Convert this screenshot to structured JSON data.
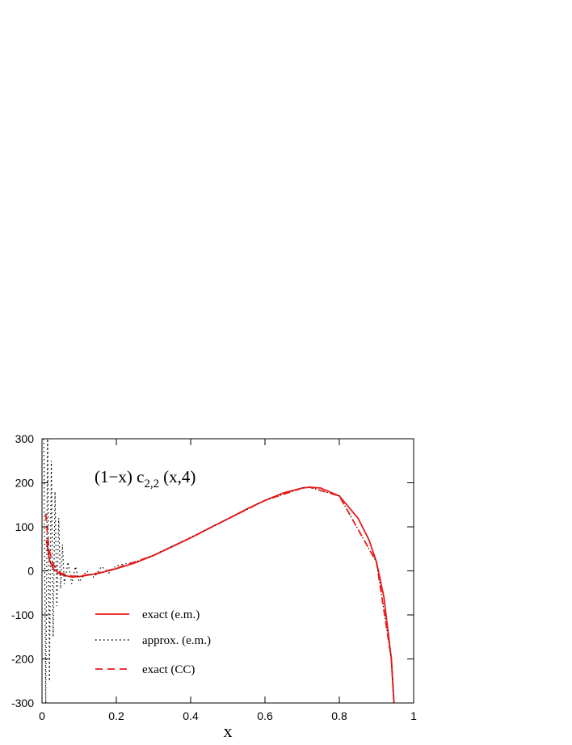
{
  "chart_data": {
    "type": "line",
    "annotation": {
      "text": "(1−x) c",
      "subscript": "2,2",
      "suffix": "(x,4)"
    },
    "x_label": "x",
    "xlim": [
      0,
      1
    ],
    "xticks": [
      0,
      0.2,
      0.4,
      0.6,
      0.8,
      1
    ],
    "ylim": [
      -300,
      300
    ],
    "yticks": [
      -300,
      -200,
      -100,
      0,
      100,
      200,
      300
    ],
    "series": [
      {
        "name": "exact  (e.m.)",
        "color": "#e8191a",
        "style": "solid",
        "x": [
          0.012,
          0.02,
          0.03,
          0.05,
          0.08,
          0.1,
          0.15,
          0.2,
          0.25,
          0.3,
          0.35,
          0.4,
          0.45,
          0.5,
          0.55,
          0.6,
          0.65,
          0.7,
          0.72,
          0.75,
          0.8,
          0.85,
          0.88,
          0.9,
          0.92,
          0.94,
          0.947
        ],
        "values": [
          70,
          25,
          5,
          -8,
          -14,
          -13,
          -6,
          5,
          18,
          35,
          55,
          75,
          97,
          118,
          140,
          160,
          177,
          188,
          190,
          188,
          170,
          120,
          70,
          20,
          -60,
          -200,
          -300
        ]
      },
      {
        "name": "approx. (e.m.)",
        "color": "#000000",
        "style": "dotted",
        "x": [
          0.005,
          0.01,
          0.015,
          0.02,
          0.025,
          0.03,
          0.035,
          0.04,
          0.045,
          0.05,
          0.055,
          0.06,
          0.07,
          0.08,
          0.09,
          0.1,
          0.12,
          0.14,
          0.16,
          0.18,
          0.2,
          0.25,
          0.3,
          0.4,
          0.5,
          0.6,
          0.7,
          0.72,
          0.8,
          0.9,
          0.94,
          0.947
        ],
        "values": [
          300,
          -300,
          300,
          -250,
          250,
          -150,
          180,
          -80,
          120,
          -40,
          60,
          -30,
          20,
          -30,
          10,
          -25,
          0,
          -15,
          10,
          -5,
          12,
          20,
          36,
          76,
          118,
          160,
          188,
          190,
          170,
          20,
          -200,
          -300
        ]
      },
      {
        "name": "exact  (CC)",
        "color": "#e8191a",
        "style": "dashed",
        "x": [
          0.01,
          0.015,
          0.02,
          0.03,
          0.05,
          0.08,
          0.1,
          0.15,
          0.2,
          0.3,
          0.4,
          0.5,
          0.6,
          0.7,
          0.72,
          0.8,
          0.9,
          0.94,
          0.947
        ],
        "values": [
          130,
          80,
          45,
          15,
          -5,
          -12,
          -12,
          -5,
          6,
          35,
          75,
          118,
          160,
          188,
          190,
          170,
          20,
          -200,
          -300
        ]
      }
    ]
  }
}
